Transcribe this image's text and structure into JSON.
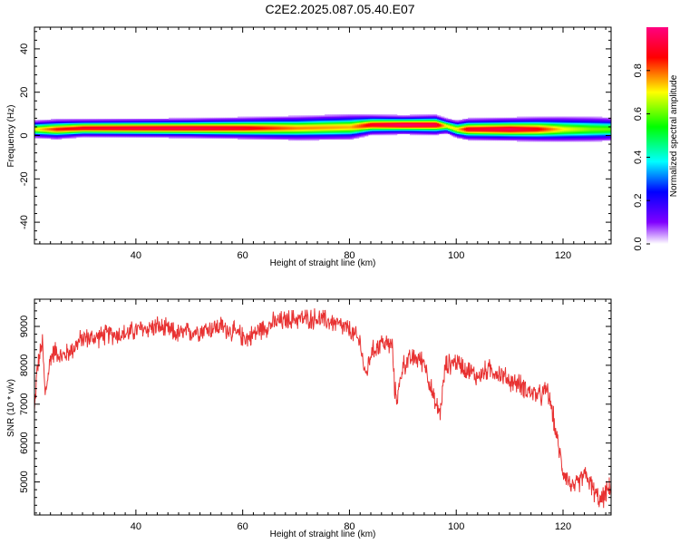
{
  "title": "C2E2.2025.087.05.40.E07",
  "chart_data": [
    {
      "type": "heatmap",
      "xlabel": "Height of straight line (km)",
      "ylabel": "Frequency (Hz)",
      "xlim": [
        21,
        129
      ],
      "ylim": [
        -50,
        50
      ],
      "x_ticks": [
        40,
        60,
        80,
        100,
        120
      ],
      "y_ticks": [
        -40,
        -20,
        0,
        20,
        40
      ],
      "colorbar": {
        "label": "Normalized spectral amplitude",
        "range": [
          0,
          1
        ],
        "ticks": [
          "0.0",
          "0.2",
          "0.4",
          "0.6",
          "0.8"
        ],
        "colormap": [
          "#ffffff",
          "#8000ff",
          "#0000ff",
          "#00ffff",
          "#00ff00",
          "#ffff00",
          "#ff0000",
          "#ff0080"
        ]
      },
      "ridge": {
        "x": [
          21,
          25,
          30,
          40,
          50,
          60,
          70,
          80,
          84,
          90,
          96,
          98,
          100,
          102,
          110,
          115,
          120,
          125,
          129
        ],
        "center_hz": [
          3,
          3,
          3.5,
          3.5,
          3.5,
          3.5,
          3.5,
          4,
          5,
          5,
          5,
          4.5,
          3,
          3,
          3,
          3,
          3,
          3,
          3
        ],
        "half_width_hz": [
          2.5,
          2.8,
          2.5,
          2.6,
          2.7,
          3.0,
          3.4,
          3.6,
          2.8,
          2.6,
          2.8,
          2.2,
          2.5,
          3.0,
          3.2,
          3.4,
          3.6,
          3.6,
          3.4
        ],
        "peak_amplitude": [
          0.7,
          0.85,
          0.9,
          0.93,
          0.94,
          0.9,
          0.78,
          0.75,
          0.9,
          0.98,
          0.95,
          0.7,
          0.72,
          0.9,
          0.95,
          0.88,
          0.7,
          0.62,
          0.6
        ]
      }
    },
    {
      "type": "line",
      "xlabel": "Height of straight line (km)",
      "ylabel": "SNR (10 * v/v)",
      "xlim": [
        21,
        129
      ],
      "ylim": [
        4150,
        9700
      ],
      "x_ticks": [
        40,
        60,
        80,
        100,
        120
      ],
      "y_ticks": [
        5000,
        6000,
        7000,
        8000,
        9000
      ],
      "color": "#e83232",
      "trend": {
        "x": [
          21,
          21.5,
          22.5,
          23,
          24,
          25,
          26,
          28,
          30,
          32,
          35,
          38,
          40,
          44,
          48,
          52,
          56,
          59,
          61,
          63,
          66,
          70,
          74,
          77,
          80,
          82,
          83,
          84,
          86,
          88,
          88.5,
          89,
          90,
          92,
          94,
          96,
          97,
          98,
          100,
          104,
          106,
          108,
          110,
          112,
          114,
          116,
          117,
          118,
          119,
          120,
          122,
          124,
          125,
          126,
          127,
          128,
          129
        ],
        "y": [
          6800,
          7900,
          8600,
          7200,
          8200,
          8400,
          8200,
          8400,
          8700,
          8700,
          8800,
          8800,
          8900,
          9000,
          8800,
          8900,
          9000,
          8800,
          8700,
          8900,
          9100,
          9200,
          9200,
          9100,
          8900,
          8600,
          7700,
          8300,
          8600,
          8500,
          7300,
          7200,
          8000,
          8200,
          8100,
          7000,
          6800,
          8000,
          8100,
          7700,
          7900,
          7800,
          7600,
          7500,
          7300,
          7200,
          7400,
          6800,
          6000,
          5300,
          4800,
          5200,
          5000,
          4700,
          4500,
          4700,
          4900
        ],
        "noise_amplitude": 220,
        "samples": 1300
      }
    }
  ]
}
